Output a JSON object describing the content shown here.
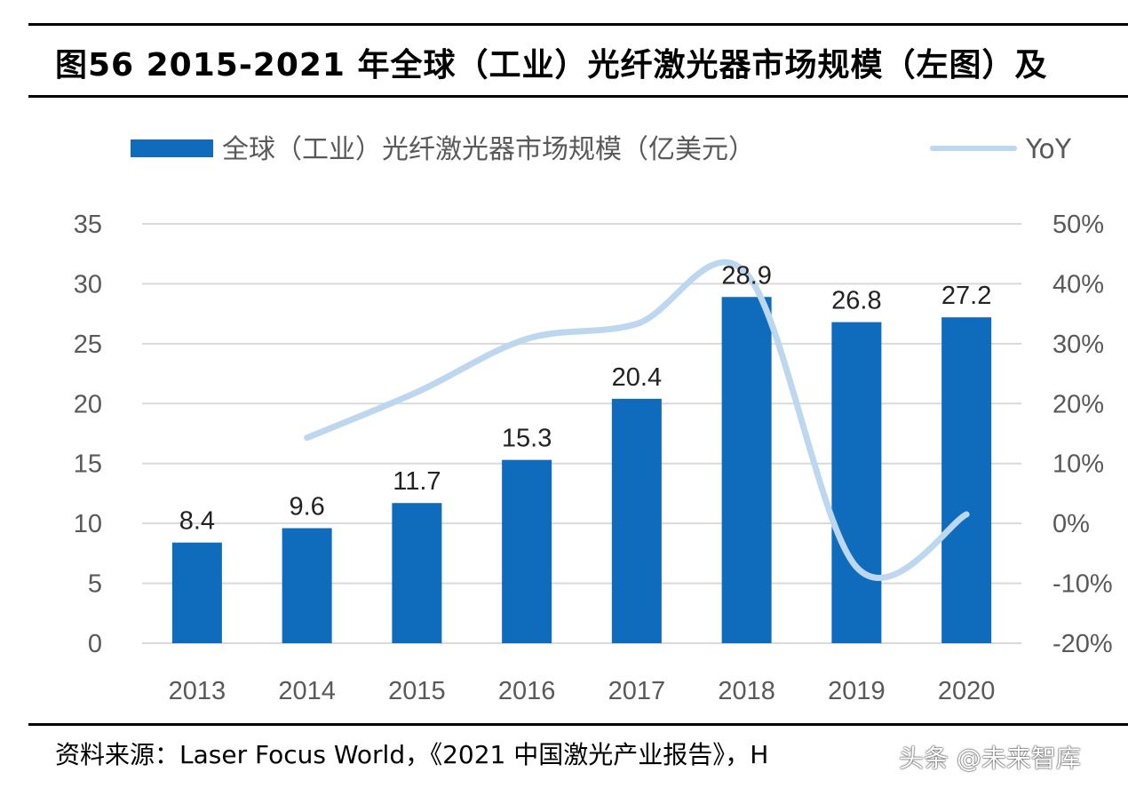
{
  "title": "图56 2015-2021 年全球（工业）光纤激光器市场规模（左图）及",
  "source": "资料来源：Laser Focus World，《2021 中国激光产业报告》，H",
  "watermark": "头条 @未来智库",
  "chart_data": {
    "type": "bar+line",
    "categories": [
      "2013",
      "2014",
      "2015",
      "2016",
      "2017",
      "2018",
      "2019",
      "2020"
    ],
    "series": [
      {
        "name": "全球（工业）光纤激光器市场规模（亿美元）",
        "type": "bar",
        "axis": "left",
        "values": [
          8.4,
          9.6,
          11.7,
          15.3,
          20.4,
          28.9,
          26.8,
          27.2
        ],
        "color": "#0f6cbd"
      },
      {
        "name": "YoY",
        "type": "line",
        "axis": "right",
        "smooth": true,
        "values": [
          null,
          14.3,
          21.9,
          30.8,
          33.3,
          41.7,
          -7.3,
          1.5
        ],
        "color": "#bdd7ee"
      }
    ],
    "data_labels": [
      "8.4",
      "9.6",
      "11.7",
      "15.3",
      "20.4",
      "28.9",
      "26.8",
      "27.2"
    ],
    "y_left": {
      "range": [
        0,
        35
      ],
      "ticks": [
        "0",
        "5",
        "10",
        "15",
        "20",
        "25",
        "30",
        "35"
      ]
    },
    "y_right": {
      "range": [
        -20,
        50
      ],
      "ticks": [
        "-20%",
        "-10%",
        "0%",
        "10%",
        "20%",
        "30%",
        "40%",
        "50%"
      ]
    },
    "grid": true,
    "legend": "top"
  }
}
